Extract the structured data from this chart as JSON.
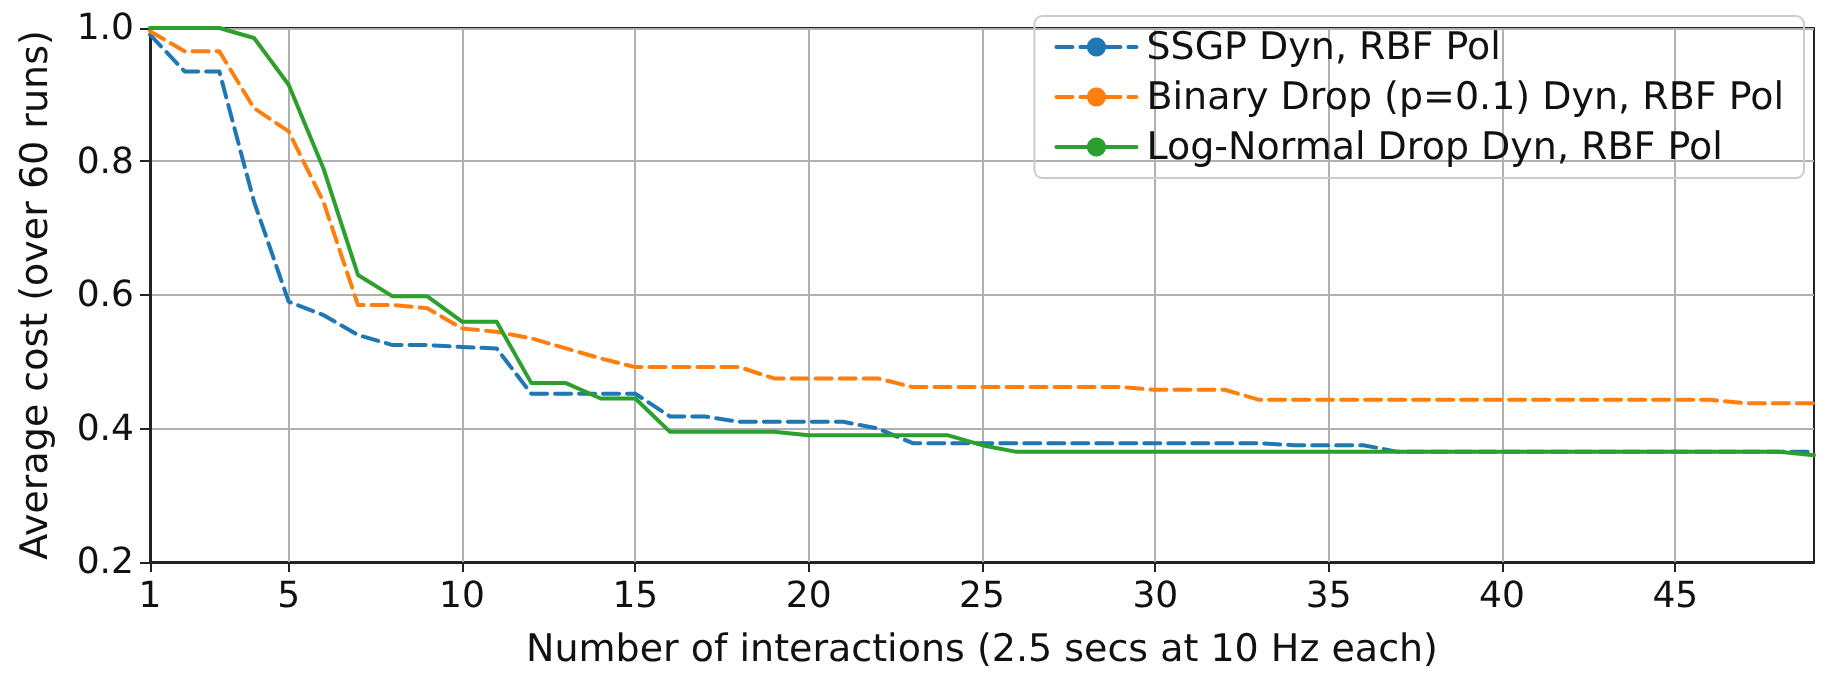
{
  "chart_data": {
    "type": "line",
    "xlabel": "Number of interactions (2.5 secs at 10 Hz each)",
    "ylabel": "Average cost (over 60 runs)",
    "x": [
      1,
      2,
      3,
      4,
      5,
      6,
      7,
      8,
      9,
      10,
      11,
      12,
      13,
      14,
      15,
      16,
      17,
      18,
      19,
      20,
      21,
      22,
      23,
      24,
      25,
      26,
      27,
      28,
      29,
      30,
      31,
      32,
      33,
      34,
      35,
      36,
      37,
      38,
      39,
      40,
      41,
      42,
      43,
      44,
      45,
      46,
      47,
      48,
      49
    ],
    "series": [
      {
        "name": "SSGP Dyn, RBF Pol",
        "color": "#1f77b4",
        "line_style": "dashed",
        "values": [
          0.99,
          0.935,
          0.935,
          0.74,
          0.59,
          0.57,
          0.54,
          0.525,
          0.525,
          0.522,
          0.52,
          0.452,
          0.452,
          0.452,
          0.452,
          0.418,
          0.418,
          0.41,
          0.41,
          0.41,
          0.41,
          0.4,
          0.378,
          0.378,
          0.378,
          0.378,
          0.378,
          0.378,
          0.378,
          0.378,
          0.378,
          0.378,
          0.378,
          0.375,
          0.375,
          0.375,
          0.365,
          0.365,
          0.365,
          0.365,
          0.365,
          0.365,
          0.365,
          0.365,
          0.365,
          0.365,
          0.365,
          0.365,
          0.365
        ]
      },
      {
        "name": "Binary Drop (p=0.1) Dyn, RBF Pol",
        "color": "#ff7f0e",
        "line_style": "dashed",
        "values": [
          0.995,
          0.965,
          0.965,
          0.88,
          0.845,
          0.74,
          0.585,
          0.585,
          0.58,
          0.55,
          0.545,
          0.535,
          0.52,
          0.505,
          0.492,
          0.492,
          0.492,
          0.492,
          0.475,
          0.475,
          0.475,
          0.475,
          0.462,
          0.462,
          0.462,
          0.462,
          0.462,
          0.462,
          0.462,
          0.458,
          0.458,
          0.458,
          0.443,
          0.443,
          0.443,
          0.443,
          0.443,
          0.443,
          0.443,
          0.443,
          0.443,
          0.443,
          0.443,
          0.443,
          0.443,
          0.443,
          0.438,
          0.438,
          0.438
        ]
      },
      {
        "name": "Log-Normal Drop Dyn, RBF Pol",
        "color": "#2ca02c",
        "line_style": "solid",
        "values": [
          1.0,
          1.0,
          1.0,
          0.985,
          0.915,
          0.79,
          0.63,
          0.598,
          0.598,
          0.56,
          0.56,
          0.468,
          0.468,
          0.445,
          0.445,
          0.395,
          0.395,
          0.395,
          0.395,
          0.39,
          0.39,
          0.39,
          0.39,
          0.39,
          0.375,
          0.365,
          0.365,
          0.365,
          0.365,
          0.365,
          0.365,
          0.365,
          0.365,
          0.365,
          0.365,
          0.365,
          0.365,
          0.365,
          0.365,
          0.365,
          0.365,
          0.365,
          0.365,
          0.365,
          0.365,
          0.365,
          0.365,
          0.365,
          0.36
        ]
      }
    ],
    "xlim": [
      1,
      49
    ],
    "xticks": [
      1,
      5,
      10,
      15,
      20,
      25,
      30,
      35,
      40,
      45
    ],
    "ylim": [
      0.2,
      1.0
    ],
    "yticks": [
      0.2,
      0.4,
      0.6,
      0.8,
      {
        "value": 1.0,
        "label": "1.0"
      }
    ],
    "grid": true,
    "legend": "top right",
    "marker": "none"
  }
}
